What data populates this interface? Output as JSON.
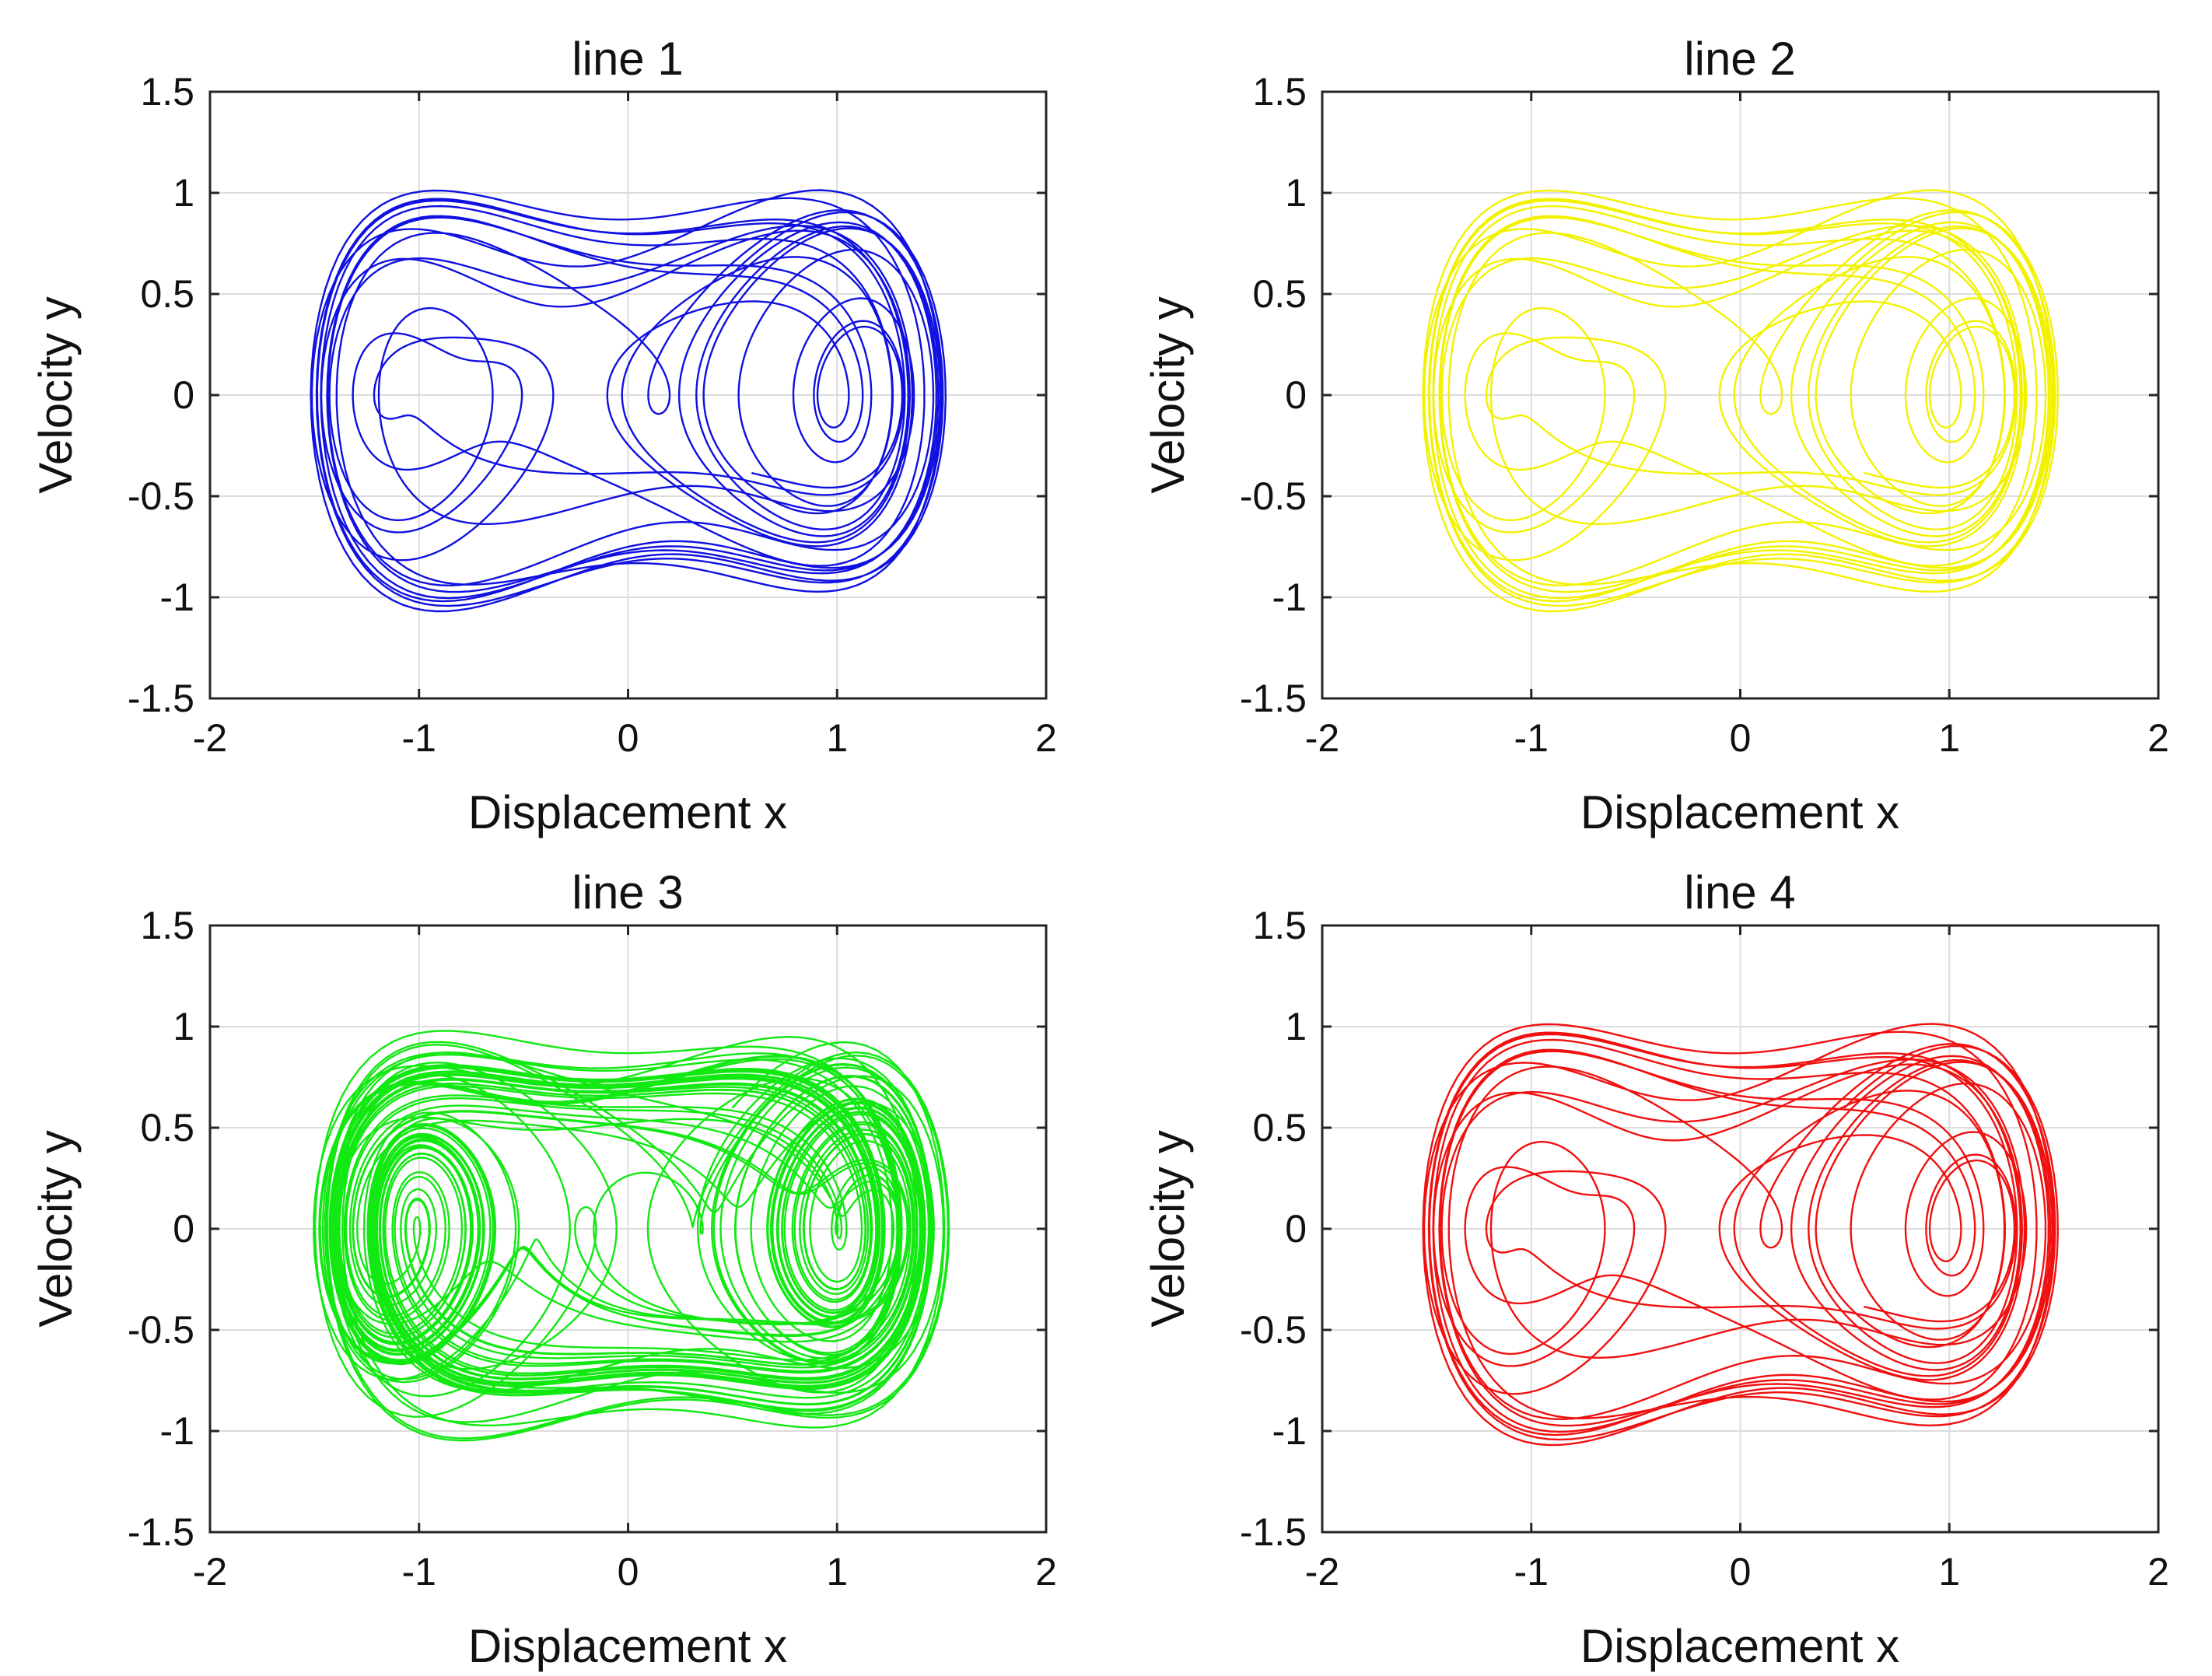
{
  "chart_data": [
    {
      "type": "line",
      "title": "line 1",
      "xlabel": "Displacement x",
      "ylabel": "Velocity y",
      "xlim": [
        -2,
        2
      ],
      "ylim": [
        -1.5,
        1.5
      ],
      "xticks": [
        -2,
        -1,
        0,
        1,
        2
      ],
      "xtick_labels": [
        "-2",
        "-1",
        "0",
        "1",
        "2"
      ],
      "yticks": [
        -1.5,
        -1,
        -0.5,
        0,
        0.5,
        1,
        1.5
      ],
      "ytick_labels": [
        "-1.5",
        "-1",
        "-0.5",
        "0",
        "0.5",
        "1",
        "1.5"
      ],
      "grid": true,
      "color": "#1010e0",
      "pattern": "limit-cycle",
      "start_point": [
        0.5,
        0.6
      ],
      "series": [
        {
          "name": "line 1",
          "x0": 0.5,
          "y0": 0.6
        }
      ]
    },
    {
      "type": "line",
      "title": "line 2",
      "xlabel": "Displacement x",
      "ylabel": "Velocity y",
      "xlim": [
        -2,
        2
      ],
      "ylim": [
        -1.5,
        1.5
      ],
      "xticks": [
        -2,
        -1,
        0,
        1,
        2
      ],
      "xtick_labels": [
        "-2",
        "-1",
        "0",
        "1",
        "2"
      ],
      "yticks": [
        -1.5,
        -1,
        -0.5,
        0,
        0.5,
        1,
        1.5
      ],
      "ytick_labels": [
        "-1.5",
        "-1",
        "-0.5",
        "0",
        "0.5",
        "1",
        "1.5"
      ],
      "grid": true,
      "color": "#f2f200",
      "pattern": "limit-cycle",
      "start_point": [
        0.5,
        0.6
      ],
      "series": [
        {
          "name": "line 2",
          "x0": 0.5,
          "y0": 0.6
        }
      ]
    },
    {
      "type": "line",
      "title": "line 3",
      "xlabel": "Displacement x",
      "ylabel": "Velocity y",
      "xlim": [
        -2,
        2
      ],
      "ylim": [
        -1.5,
        1.5
      ],
      "xticks": [
        -2,
        -1,
        0,
        1,
        2
      ],
      "xtick_labels": [
        "-2",
        "-1",
        "0",
        "1",
        "2"
      ],
      "yticks": [
        -1.5,
        -1,
        -0.5,
        0,
        0.5,
        1,
        1.5
      ],
      "ytick_labels": [
        "-1.5",
        "-1",
        "-0.5",
        "0",
        "0.5",
        "1",
        "1.5"
      ],
      "grid": true,
      "color": "#12e812",
      "pattern": "chaotic",
      "start_point": [
        0.5,
        0.6
      ],
      "series": [
        {
          "name": "line 3",
          "x0": 0.5,
          "y0": 0.6
        }
      ]
    },
    {
      "type": "line",
      "title": "line 4",
      "xlabel": "Displacement x",
      "ylabel": "Velocity y",
      "xlim": [
        -2,
        2
      ],
      "ylim": [
        -1.5,
        1.5
      ],
      "xticks": [
        -2,
        -1,
        0,
        1,
        2
      ],
      "xtick_labels": [
        "-2",
        "-1",
        "0",
        "1",
        "2"
      ],
      "yticks": [
        -1.5,
        -1,
        -0.5,
        0,
        0.5,
        1,
        1.5
      ],
      "ytick_labels": [
        "-1.5",
        "-1",
        "-0.5",
        "0",
        "0.5",
        "1",
        "1.5"
      ],
      "grid": true,
      "color": "#f01010",
      "pattern": "limit-cycle",
      "start_point": [
        0.5,
        0.6
      ],
      "series": [
        {
          "name": "line 4",
          "x0": 0.5,
          "y0": 0.6
        }
      ]
    }
  ]
}
